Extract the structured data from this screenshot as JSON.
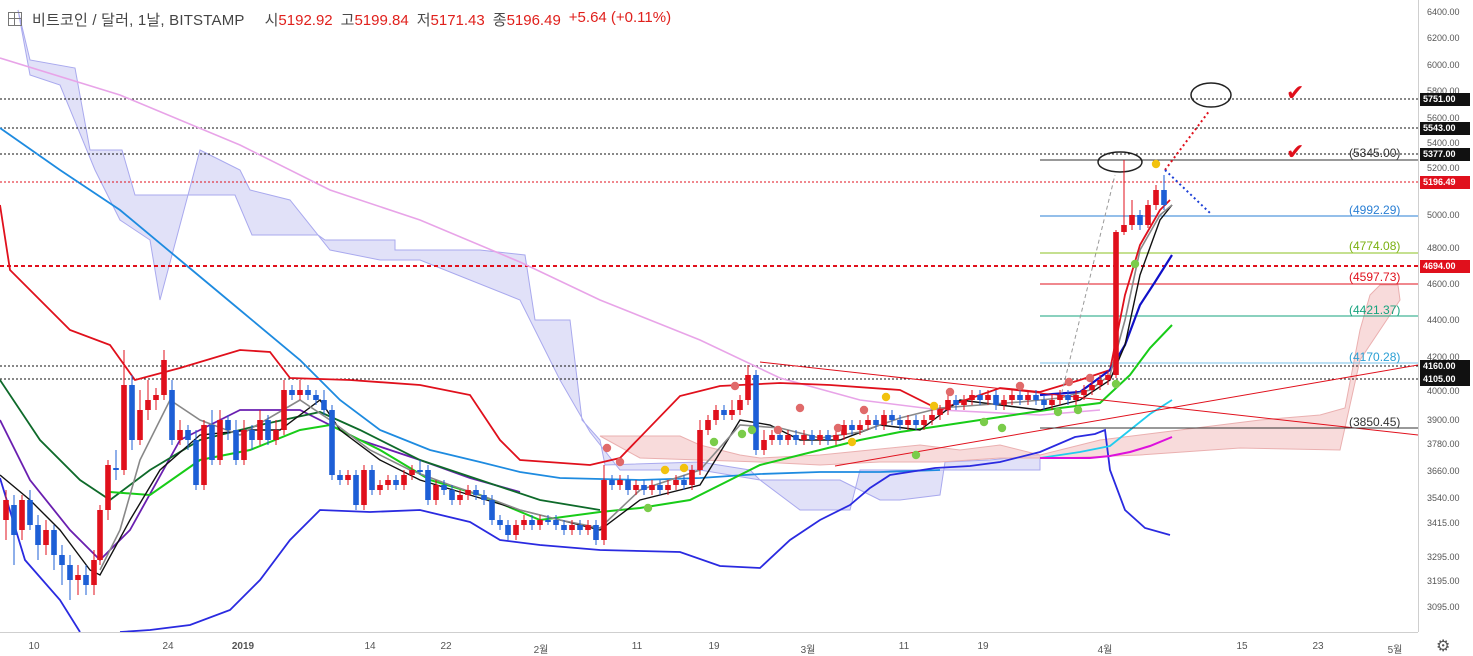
{
  "header": {
    "symbol": "비트코인 / 달러, 1날, BITSTAMP",
    "ohlc": [
      {
        "label": "시",
        "value": "5192.92"
      },
      {
        "label": "고",
        "value": "5199.84"
      },
      {
        "label": "저",
        "value": "5171.43"
      },
      {
        "label": "종",
        "value": "5196.49"
      }
    ],
    "change": "+5.64 (+0.11%)"
  },
  "colors": {
    "up": "#e0101c",
    "down": "#1d5fd6",
    "cloud": "#c9c9f2",
    "cloud_bear": "#f5cccc",
    "sma_long": "#e8a4e8",
    "ema_blue": "#1e8be0"
  },
  "price_axis": {
    "ticks": [
      "6400.00",
      "6200.00",
      "6000.00",
      "5800.00",
      "5600.00",
      "5400.00",
      "5200.00",
      "5000.00",
      "4800.00",
      "4600.00",
      "4400.00",
      "4200.00",
      "4000.00",
      "3900.00",
      "3780.00",
      "3660.00",
      "3540.00",
      "3415.00",
      "3295.00",
      "3195.00",
      "3095.00"
    ],
    "tags": [
      {
        "label": "5751.00",
        "color": "#111111"
      },
      {
        "label": "5543.00",
        "color": "#111111"
      },
      {
        "label": "5377.00",
        "color": "#111111"
      },
      {
        "label": "5196.49",
        "color": "#e0101c"
      },
      {
        "label": "4694.00",
        "color": "#e0101c"
      },
      {
        "label": "4160.00",
        "color": "#111111"
      },
      {
        "label": "4105.00",
        "color": "#111111"
      }
    ]
  },
  "fib_levels": [
    {
      "label": "(5345.00)",
      "color": "#333333"
    },
    {
      "label": "(4992.29)",
      "color": "#2a7fd4"
    },
    {
      "label": "(4774.08)",
      "color": "#7ab010"
    },
    {
      "label": "(4597.73)",
      "color": "#e0101c"
    },
    {
      "label": "(4421.37)",
      "color": "#16a37e"
    },
    {
      "label": "(4170.28)",
      "color": "#2a9fd4"
    },
    {
      "label": "(3850.45)",
      "color": "#333333"
    }
  ],
  "time_axis": {
    "labels": [
      "10",
      "24",
      "2019",
      "14",
      "22",
      "2월",
      "11",
      "19",
      "3월",
      "11",
      "19",
      "4월",
      "15",
      "23",
      "5월"
    ]
  },
  "icons": {
    "settings": "gear-icon",
    "checks": [
      "check-mark-icon",
      "check-mark-icon"
    ]
  }
}
